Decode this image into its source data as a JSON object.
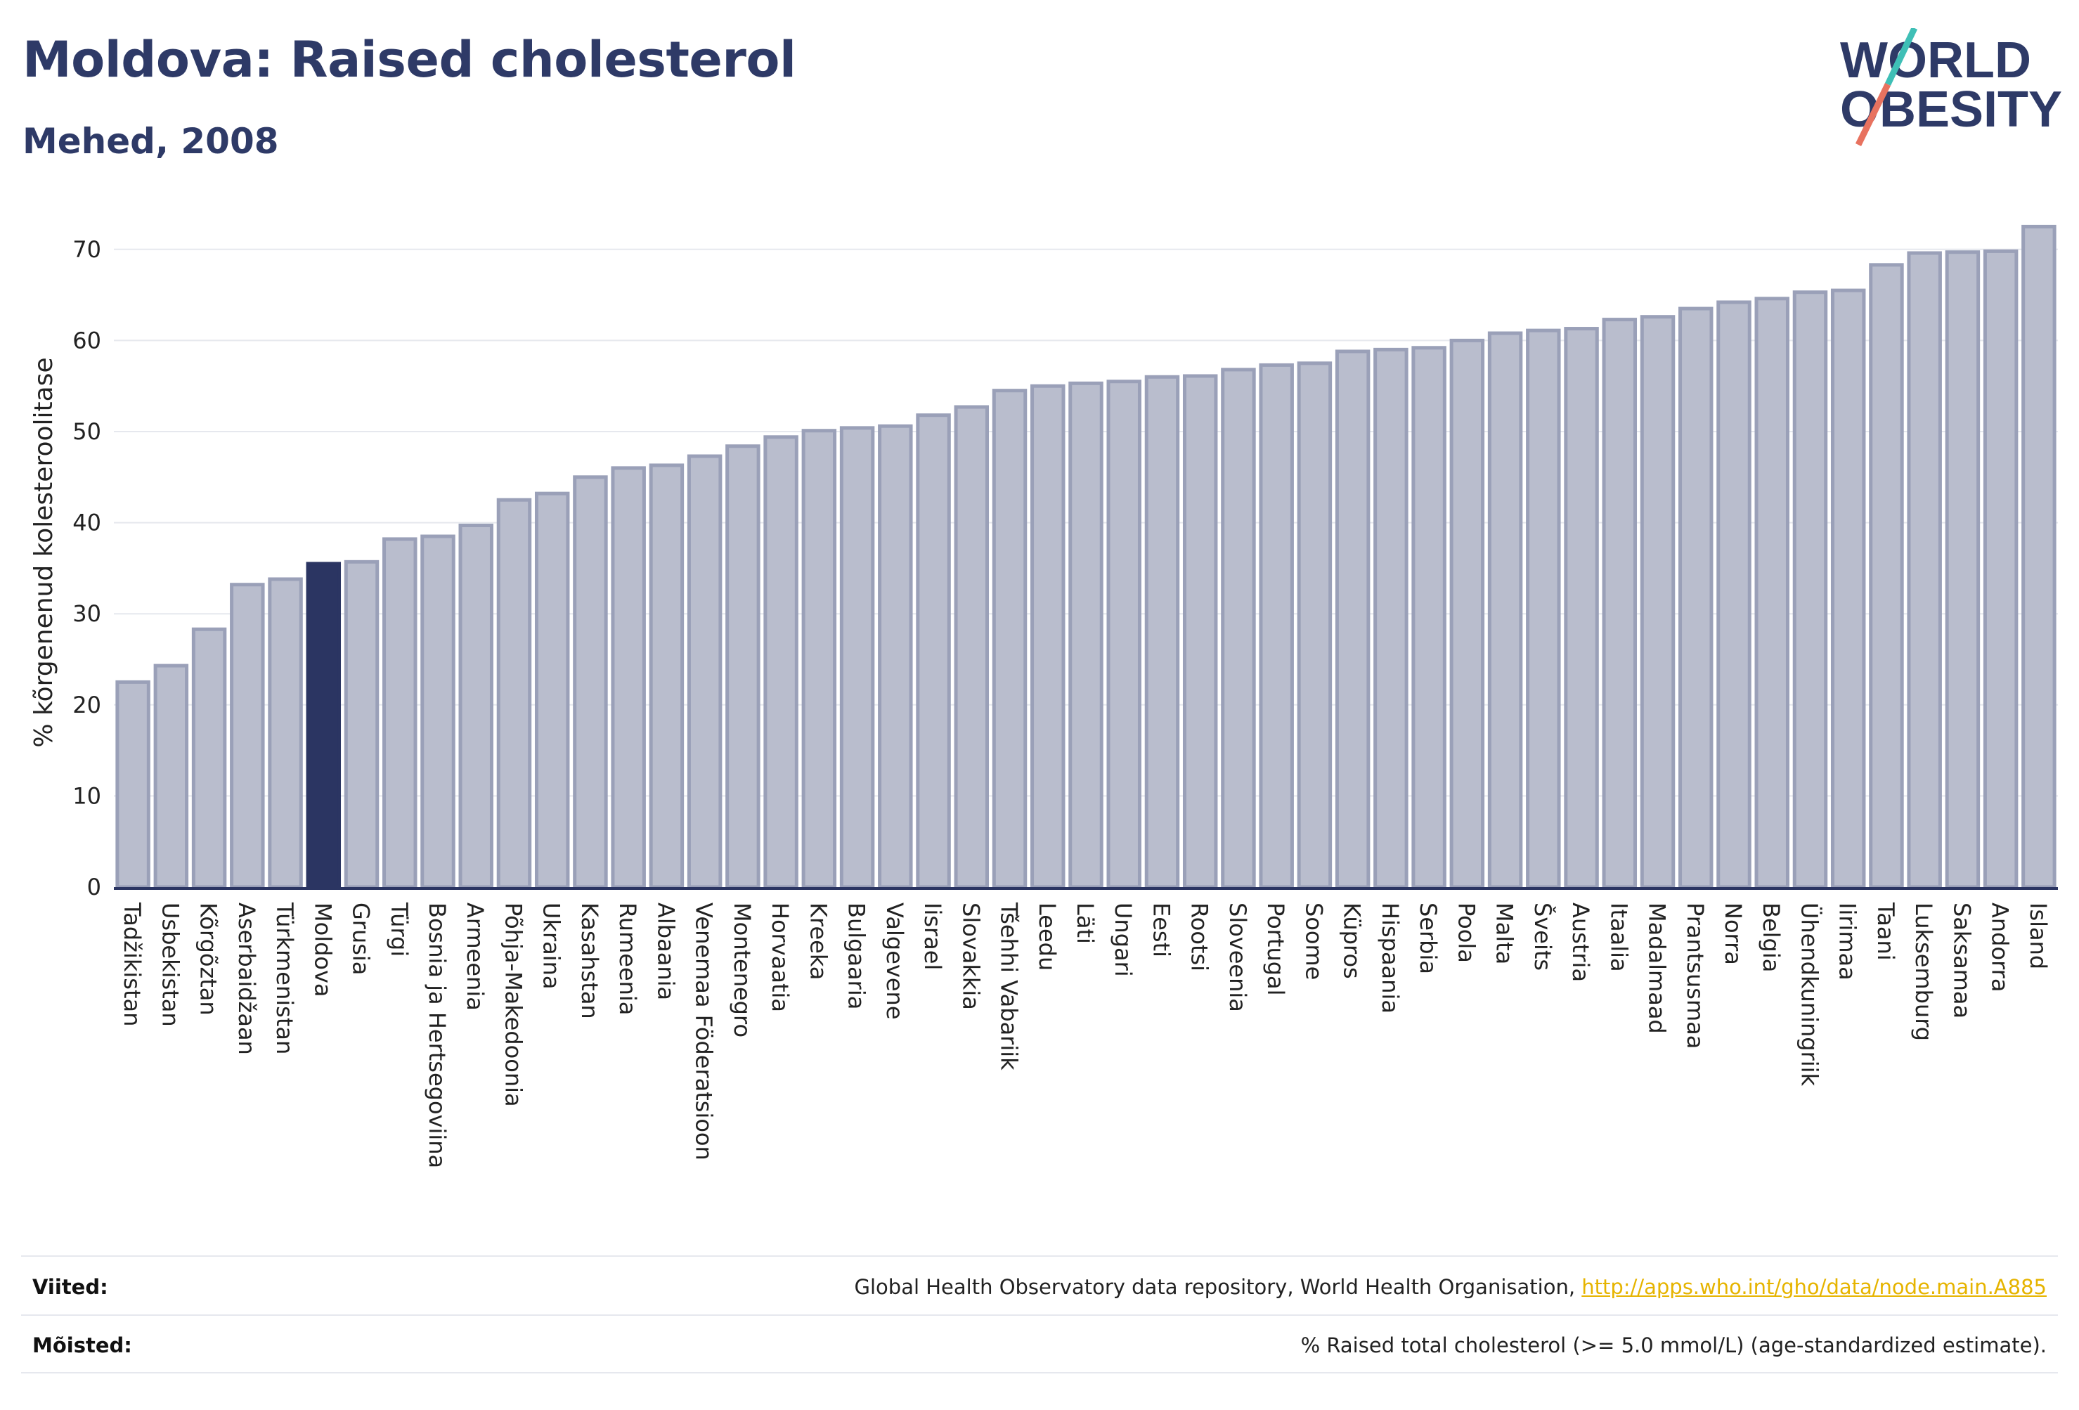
{
  "header": {
    "title": "Moldova: Raised cholesterol",
    "subtitle": "Mehed, 2008"
  },
  "logo": {
    "line1": "WORLD",
    "line2": "OBESITY",
    "colors": {
      "text": "#2e3a67",
      "slash_teal": "#3fbfb6",
      "slash_coral": "#e8725f"
    }
  },
  "colors": {
    "bar_default": "#b9bdcd",
    "bar_default_stroke": "#9aa0b8",
    "bar_highlight": "#2b3562",
    "axis": "#2b3562",
    "grid": "#e6e8ee"
  },
  "chart_data": {
    "type": "bar",
    "ylabel": "% kõrgenenud kolesteroolitase",
    "xlabel": "",
    "ylim": [
      0,
      75
    ],
    "yticks": [
      0,
      10,
      20,
      30,
      40,
      50,
      60,
      70
    ],
    "grid": true,
    "highlight": "Moldova",
    "categories": [
      "Tadžikistan",
      "Usbekistan",
      "Kõrgõztan",
      "Aserbaidžaan",
      "Türkmenistan",
      "Moldova",
      "Grusia",
      "Türgi",
      "Bosnia ja Hertsegoviina",
      "Armeenia",
      "Põhja-Makedoonia",
      "Ukraina",
      "Kasahstan",
      "Rumeenia",
      "Albaania",
      "Venemaa Föderatsioon",
      "Montenegro",
      "Horvaatia",
      "Kreeka",
      "Bulgaaria",
      "Valgevene",
      "Iisrael",
      "Slovakkia",
      "Tšehhi Vabariik",
      "Leedu",
      "Läti",
      "Ungari",
      "Eesti",
      "Rootsi",
      "Sloveenia",
      "Portugal",
      "Soome",
      "Küpros",
      "Hispaania",
      "Serbia",
      "Poola",
      "Malta",
      "Šveits",
      "Austria",
      "Itaalia",
      "Madalmaad",
      "Prantsusmaa",
      "Norra",
      "Belgia",
      "Ühendkuningriik",
      "Iirimaa",
      "Taani",
      "Luksemburg",
      "Saksamaa",
      "Andorra",
      "Island"
    ],
    "values": [
      22.5,
      24.3,
      28.3,
      33.2,
      33.8,
      35.5,
      35.7,
      38.2,
      38.5,
      39.7,
      42.5,
      43.2,
      45.0,
      46.0,
      46.3,
      47.3,
      48.4,
      49.4,
      50.1,
      50.4,
      50.6,
      51.8,
      52.7,
      54.5,
      55.0,
      55.3,
      55.5,
      56.0,
      56.1,
      56.8,
      57.3,
      57.5,
      58.8,
      59.0,
      59.2,
      60.0,
      60.8,
      61.1,
      61.3,
      62.3,
      62.6,
      63.5,
      64.2,
      64.6,
      65.3,
      65.5,
      68.3,
      69.6,
      69.7,
      69.8,
      72.5
    ]
  },
  "footer": {
    "sources_label": "Viited:",
    "sources_text": "Global Health Observatory data repository, World Health Organisation, ",
    "sources_link": "http://apps.who.int/gho/data/node.main.A885",
    "definitions_label": "Mõisted:",
    "definitions_text": "% Raised total cholesterol (>= 5.0 mmol/L) (age-standardized estimate)."
  }
}
